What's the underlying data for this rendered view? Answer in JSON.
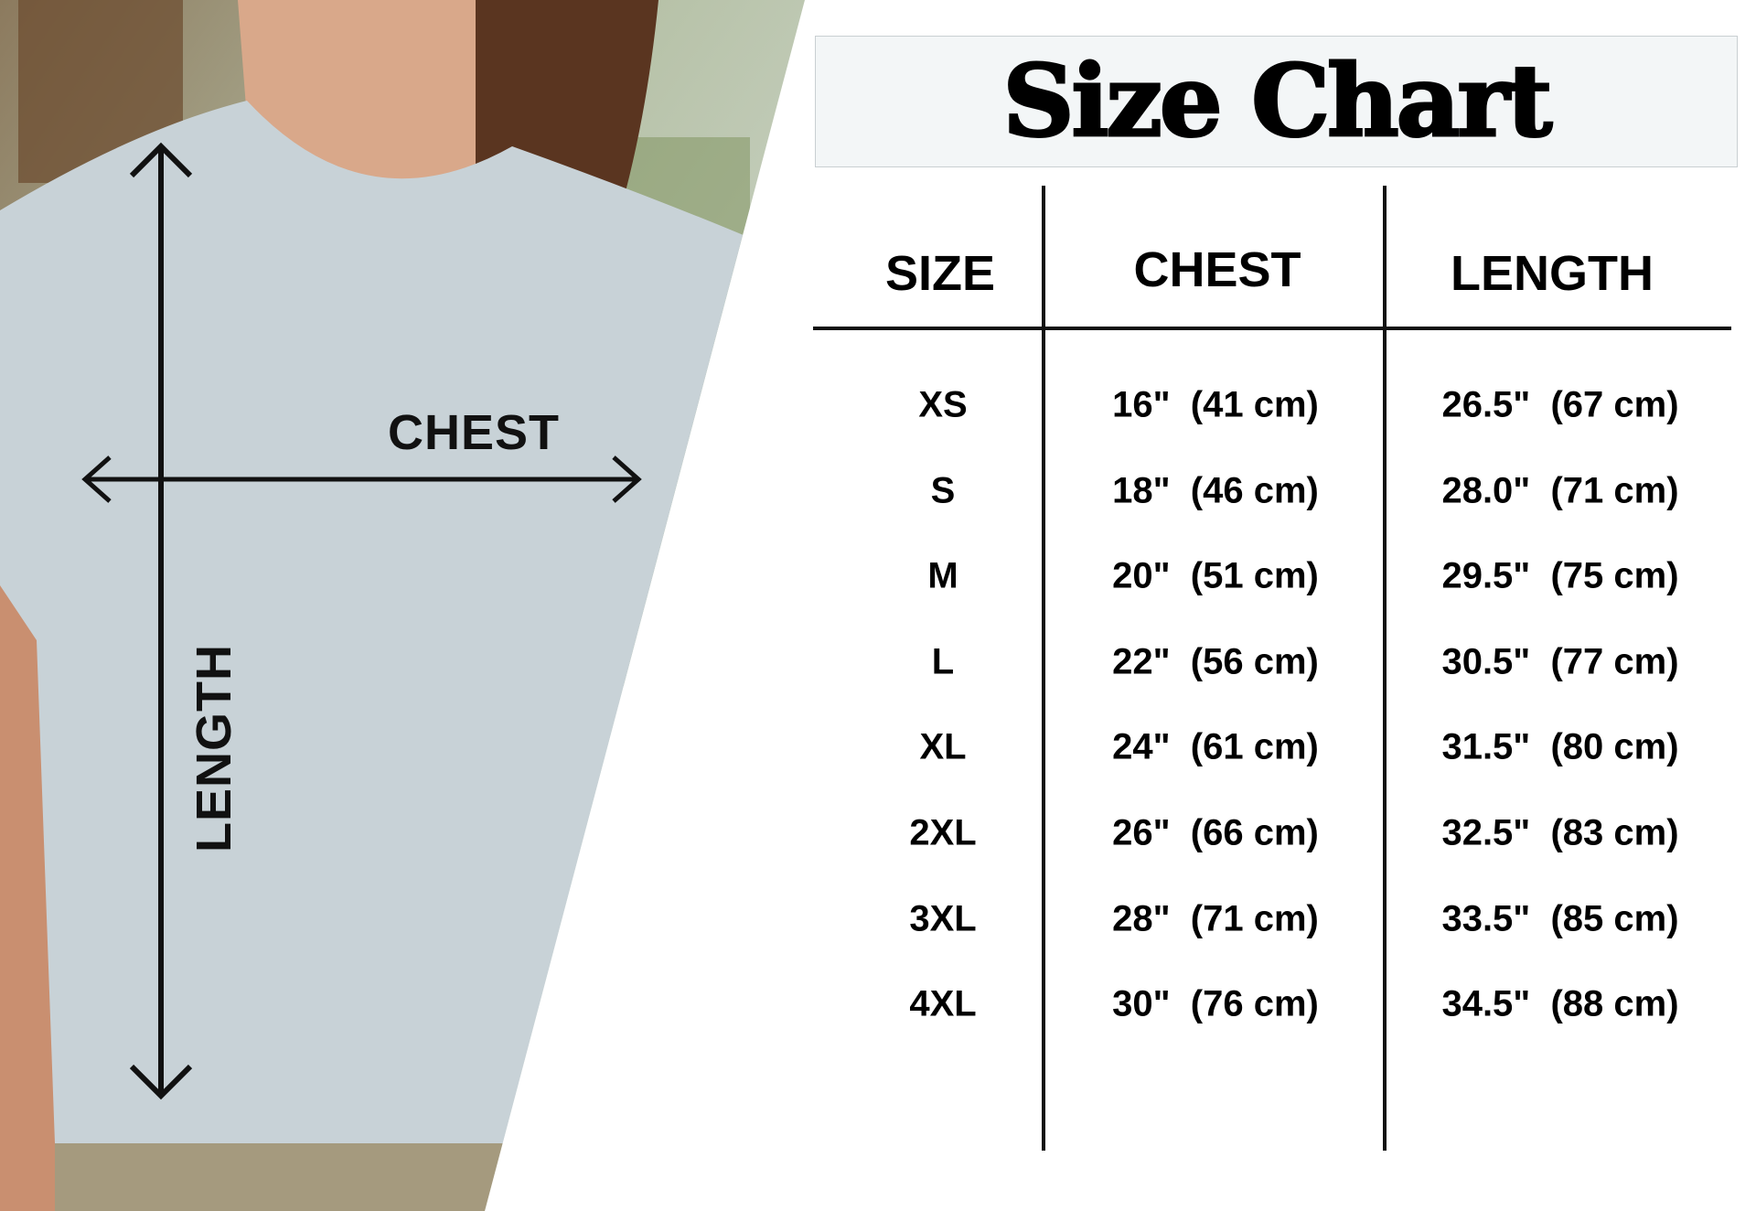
{
  "title": "Size Chart",
  "diagram_labels": {
    "chest": "CHEST",
    "length": "LENGTH"
  },
  "table": {
    "headers": [
      "SIZE",
      "CHEST",
      "LENGTH"
    ],
    "rows": [
      {
        "size": "XS",
        "chest": "16\"  (41 cm)",
        "length": "26.5\"  (67 cm)"
      },
      {
        "size": "S",
        "chest": "18\"  (46 cm)",
        "length": "28.0\"  (71 cm)"
      },
      {
        "size": "M",
        "chest": "20\"  (51 cm)",
        "length": "29.5\"  (75 cm)"
      },
      {
        "size": "L",
        "chest": "22\"  (56 cm)",
        "length": "30.5\"  (77 cm)"
      },
      {
        "size": "XL",
        "chest": "24\"  (61 cm)",
        "length": "31.5\"  (80 cm)"
      },
      {
        "size": "2XL",
        "chest": "26\"  (66 cm)",
        "length": "32.5\"  (83 cm)"
      },
      {
        "size": "3XL",
        "chest": "28\"  (71 cm)",
        "length": "33.5\"  (85 cm)"
      },
      {
        "size": "4XL",
        "chest": "30\"  (76 cm)",
        "length": "34.5\"  (88 cm)"
      }
    ]
  },
  "colors": {
    "shirt": "#c8d2d7",
    "text": "#000000",
    "title_bg": "#f3f6f7"
  }
}
